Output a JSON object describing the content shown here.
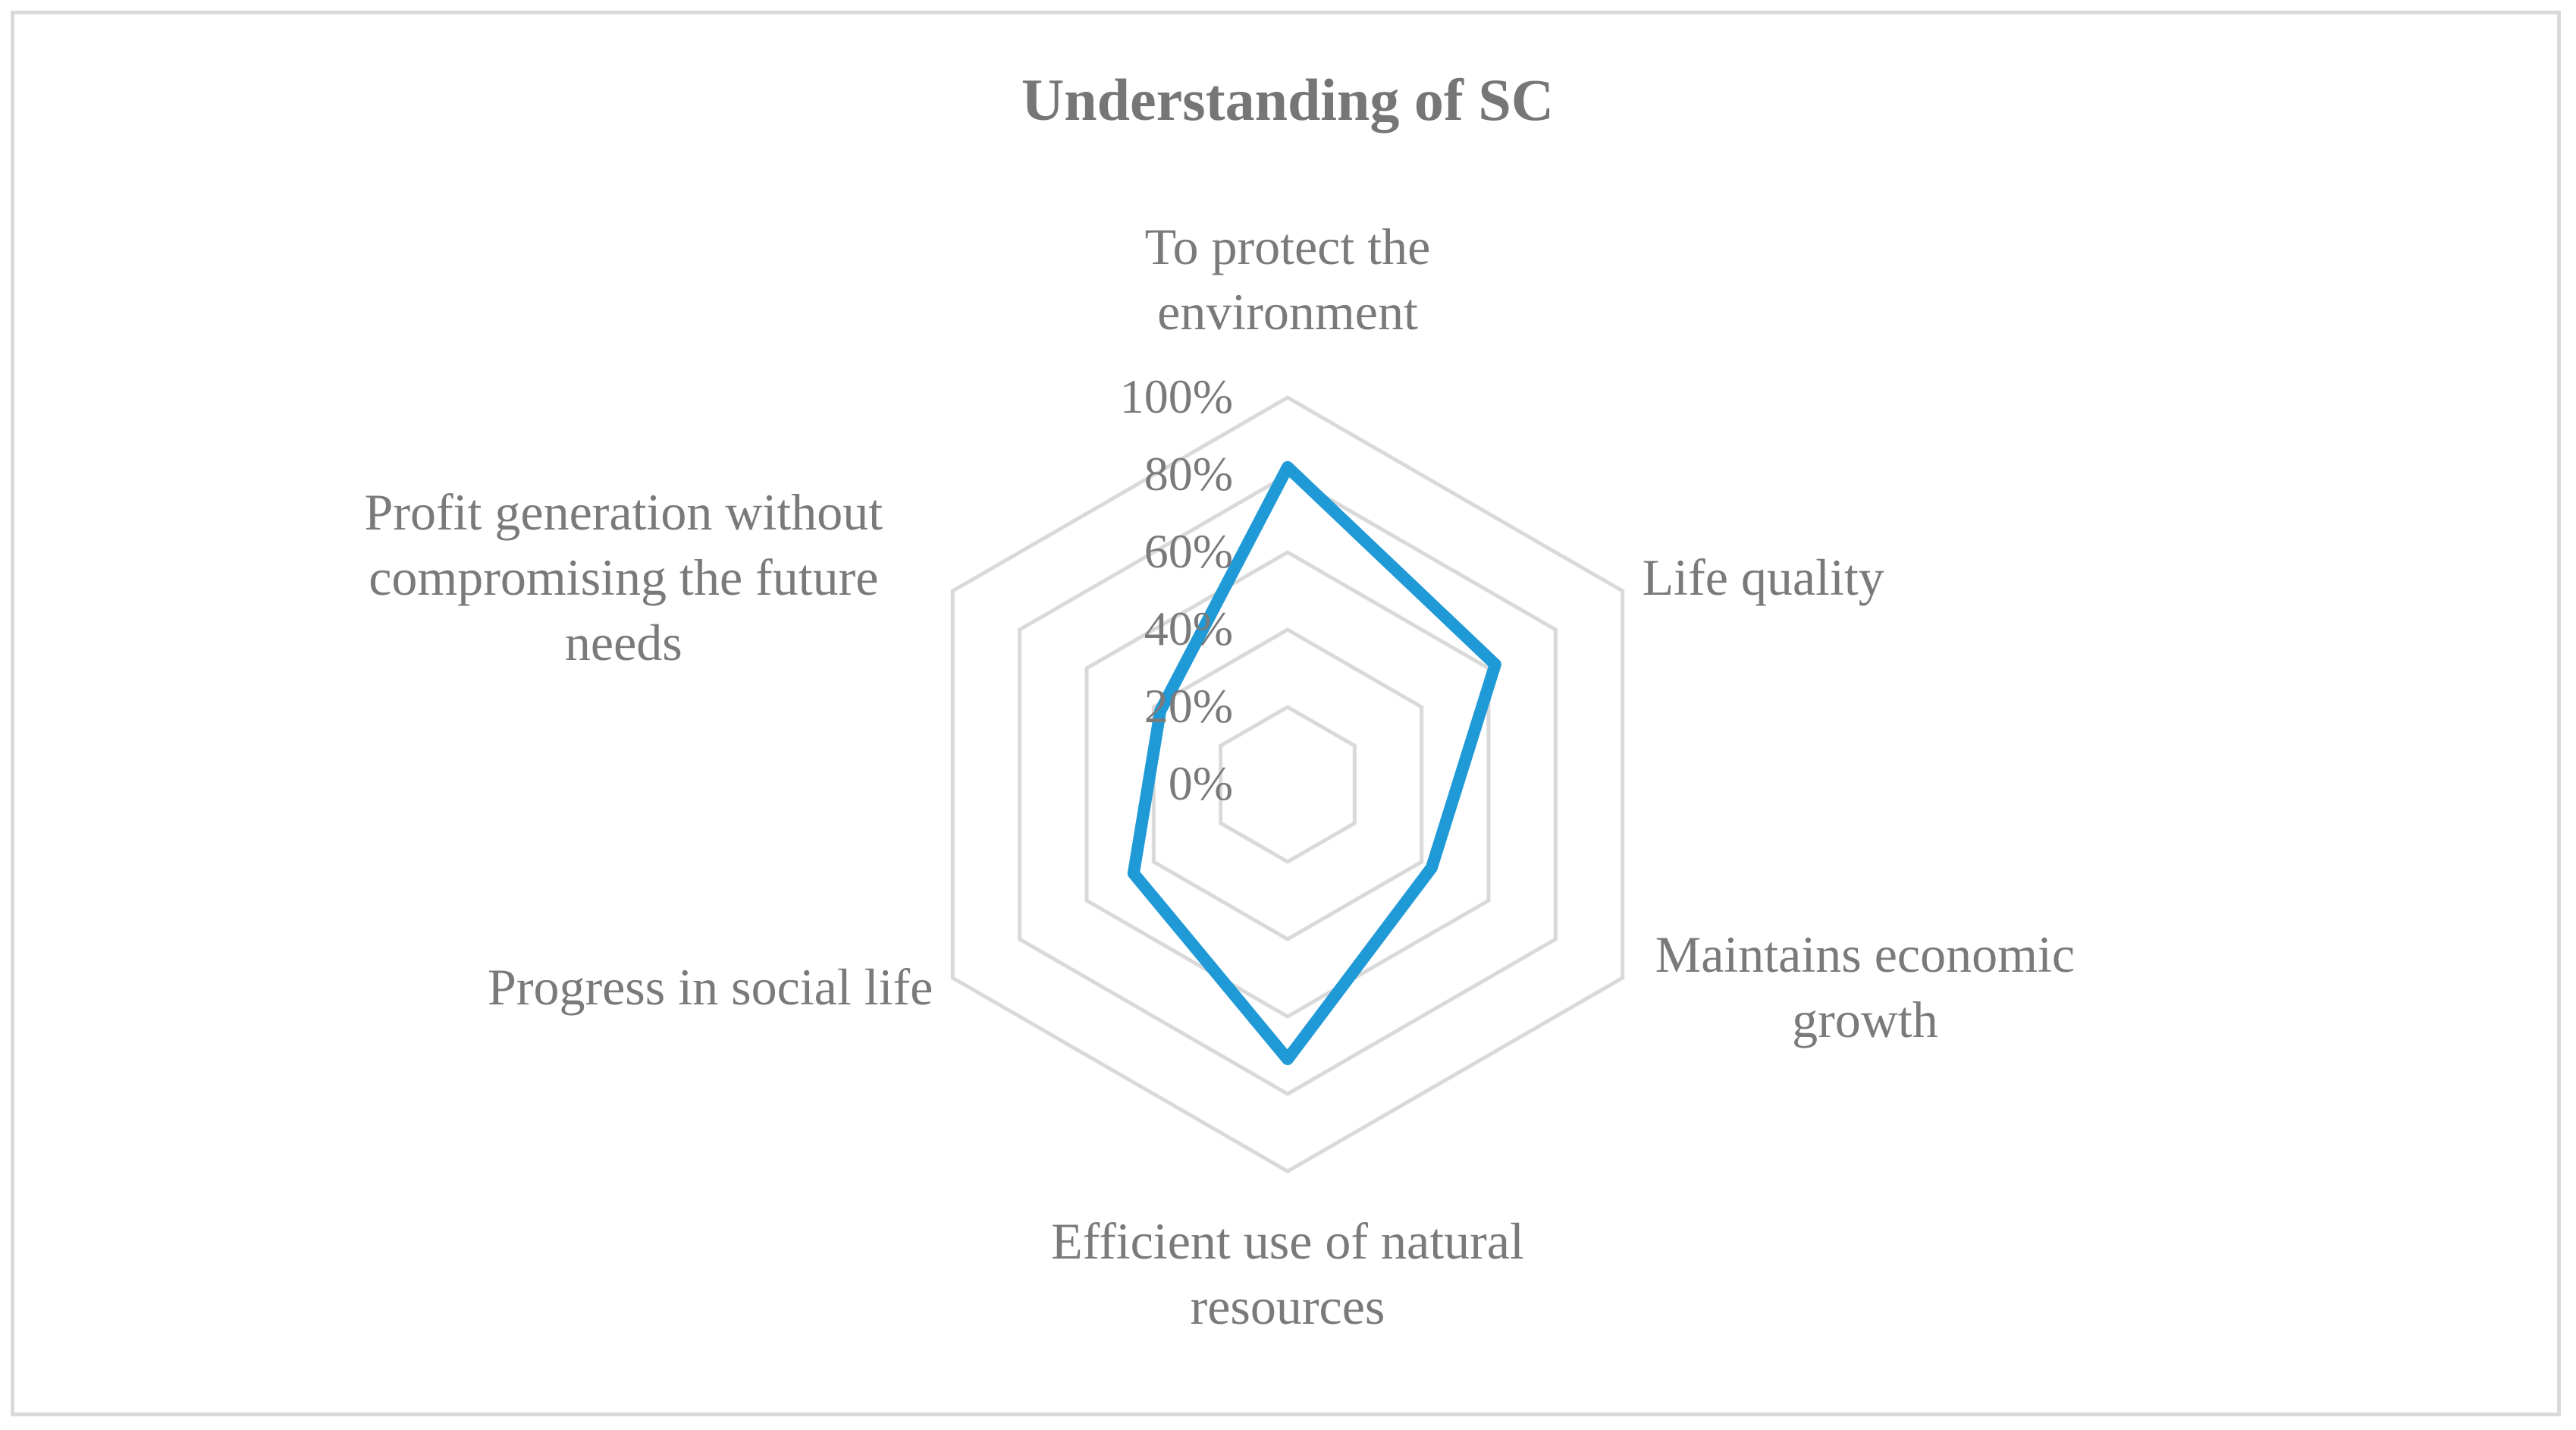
{
  "chart_data": {
    "type": "radar",
    "title": "Understanding of SC",
    "categories": [
      [
        "To protect the",
        "environment"
      ],
      [
        "Life quality"
      ],
      [
        "Maintains economic",
        "growth"
      ],
      [
        "Efficient use of natural",
        "resources"
      ],
      [
        "Progress in social life"
      ],
      [
        "Profit generation without",
        "compromising the future",
        "needs"
      ]
    ],
    "series": [
      {
        "name": "Understanding of SC",
        "values": [
          82,
          62,
          43,
          71,
          46,
          38
        ],
        "color": "#1f9ad6"
      }
    ],
    "rlim": [
      0,
      100
    ],
    "ticks": [
      0,
      20,
      40,
      60,
      80,
      100
    ],
    "tick_labels": [
      "0%",
      "20%",
      "40%",
      "60%",
      "80%",
      "100%"
    ],
    "grid": true,
    "grid_color": "#d9d9d9",
    "legend": "none"
  }
}
